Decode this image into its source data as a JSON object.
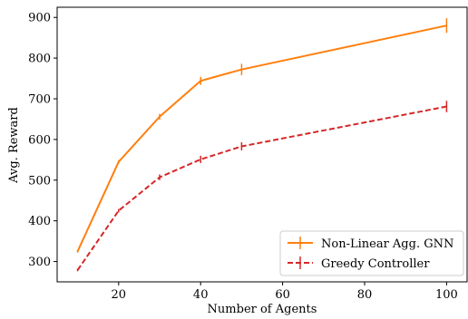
{
  "chart_data": {
    "type": "line",
    "title": "",
    "xlabel": "Number of Agents",
    "ylabel": "Avg. Reward",
    "xlim": [
      5,
      105
    ],
    "ylim": [
      250,
      925
    ],
    "xticks": [
      20,
      40,
      60,
      80,
      100
    ],
    "xtick_labels": [
      "20",
      "40",
      "60",
      "80",
      "100"
    ],
    "yticks": [
      300,
      400,
      500,
      600,
      700,
      800,
      900
    ],
    "ytick_labels": [
      "300",
      "400",
      "500",
      "600",
      "700",
      "800",
      "900"
    ],
    "grid": false,
    "legend": {
      "placement": "lower-right"
    },
    "series": [
      {
        "name": "Non-Linear Agg. GNN",
        "color": "#ff7f0e",
        "linestyle": "solid",
        "x": [
          10,
          20,
          30,
          40,
          50,
          100
        ],
        "y": [
          325,
          545,
          656,
          744,
          772,
          880
        ],
        "err": [
          3,
          4,
          7,
          10,
          14,
          18
        ]
      },
      {
        "name": "Greedy Controller",
        "color": "#d62728",
        "linestyle": "dashed",
        "x": [
          10,
          20,
          30,
          40,
          50,
          100
        ],
        "y": [
          279,
          425,
          507,
          551,
          583,
          681
        ],
        "err": [
          3,
          4,
          7,
          9,
          10,
          14
        ]
      }
    ]
  }
}
